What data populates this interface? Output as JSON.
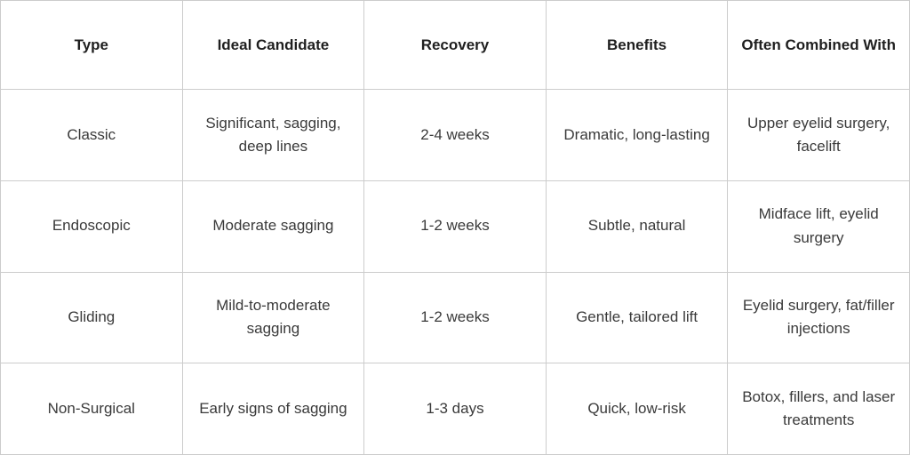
{
  "chart_data": {
    "type": "table",
    "columns": [
      "Type",
      "Ideal Candidate",
      "Recovery",
      "Benefits",
      "Often Combined With"
    ],
    "rows": [
      [
        "Classic",
        "Significant, sagging, deep lines",
        "2-4 weeks",
        "Dramatic, long-lasting",
        "Upper eyelid surgery, facelift"
      ],
      [
        "Endoscopic",
        "Moderate sagging",
        "1-2 weeks",
        "Subtle, natural",
        "Midface lift, eyelid surgery"
      ],
      [
        "Gliding",
        "Mild-to-moderate sagging",
        "1-2 weeks",
        "Gentle, tailored lift",
        "Eyelid surgery, fat/filler injections"
      ],
      [
        "Non-Surgical",
        "Early signs of sagging",
        "1-3 days",
        "Quick, low-risk",
        "Botox, fillers, and laser treatments"
      ]
    ],
    "layout": {
      "grid": true,
      "header_row_bold": true,
      "text_align": "center",
      "column_count": 5,
      "data_row_count": 4
    }
  },
  "colors": {
    "border": "#cccccc",
    "header_text": "#1f1f1f",
    "body_text": "#3a3a3a",
    "background": "#ffffff"
  }
}
